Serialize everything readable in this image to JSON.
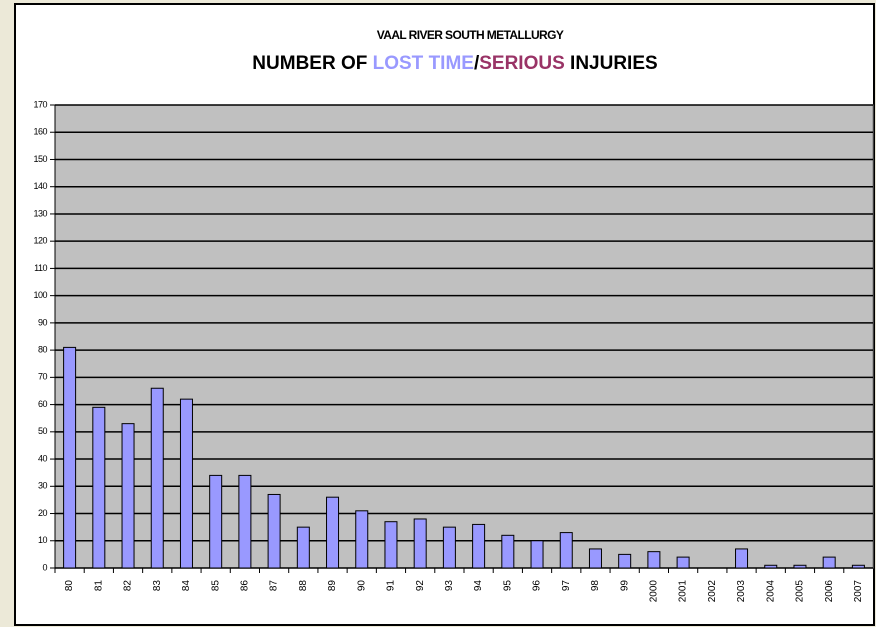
{
  "chart_data": {
    "type": "bar",
    "subtitle": "VAAL RIVER SOUTH METALLURGY",
    "title_parts": [
      {
        "text": "NUMBER OF ",
        "color": "#000000"
      },
      {
        "text": "LOST TIME",
        "color": "#9999ff"
      },
      {
        "text": "/",
        "color": "#000000"
      },
      {
        "text": "SERIOUS",
        "color": "#993366"
      },
      {
        "text": " INJURIES",
        "color": "#000000"
      }
    ],
    "categories": [
      "80",
      "81",
      "82",
      "83",
      "84",
      "85",
      "86",
      "87",
      "88",
      "89",
      "90",
      "91",
      "92",
      "93",
      "94",
      "95",
      "96",
      "97",
      "98",
      "99",
      "2000",
      "2001",
      "2002",
      "2003",
      "2004",
      "2005",
      "2006",
      "2007"
    ],
    "values": [
      81,
      59,
      53,
      66,
      62,
      34,
      34,
      27,
      15,
      26,
      21,
      17,
      18,
      15,
      16,
      12,
      10,
      13,
      7,
      5,
      6,
      4,
      0,
      7,
      1,
      1,
      4,
      1
    ],
    "color": "#9999ff",
    "ylim": [
      0,
      170
    ],
    "yticks": [
      0,
      10,
      20,
      30,
      40,
      50,
      60,
      70,
      80,
      90,
      100,
      110,
      120,
      130,
      140,
      150,
      160,
      170
    ],
    "grid": true
  }
}
